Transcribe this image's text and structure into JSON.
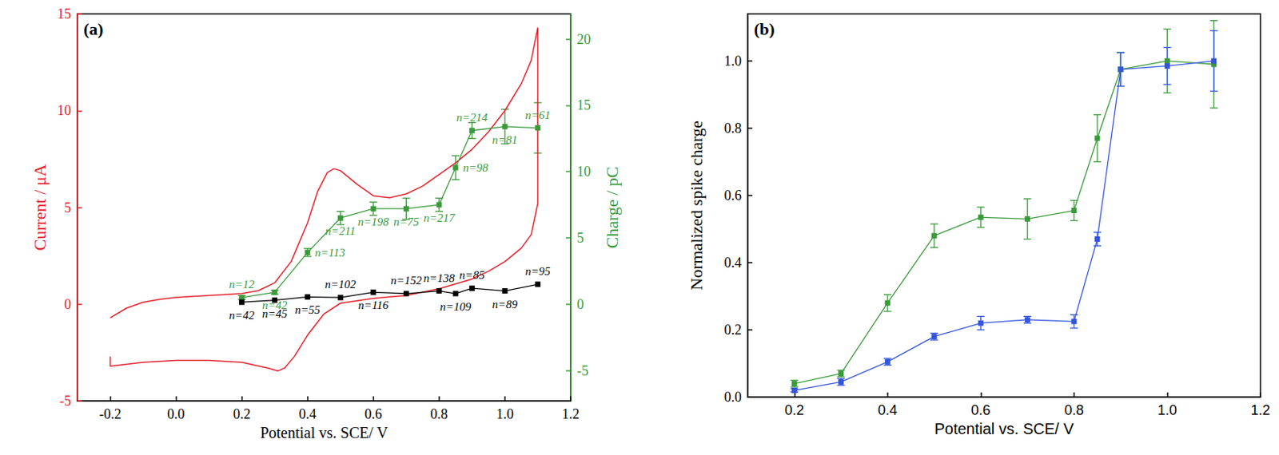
{
  "chart_data": [
    {
      "type": "line",
      "panel_label": "(a)",
      "x_label": "Potential vs. SCE/ V",
      "y_label": "Current / μA",
      "y2_label": "Charge / pC",
      "xlim": [
        -0.3,
        1.2
      ],
      "xticks": [
        -0.2,
        {
          "value": 0,
          "label": "0.0"
        },
        0.2,
        0.4,
        0.6,
        0.8,
        {
          "value": 1,
          "label": "1.0"
        },
        1.2
      ],
      "ylim": [
        -5,
        15
      ],
      "yticks": [
        -5,
        0,
        5,
        10,
        15
      ],
      "y2lim": [
        -7.3,
        21.9
      ],
      "y2ticks": [
        -5,
        0,
        5,
        10,
        15,
        20
      ],
      "grid": false,
      "series": [
        {
          "type": "line",
          "color": "#e8202a",
          "marker": "none",
          "x": [
            -0.2,
            -0.15,
            -0.1,
            -0.05,
            0.0,
            0.1,
            0.2,
            0.25,
            0.3,
            0.35,
            0.4,
            0.43,
            0.46,
            0.48,
            0.5,
            0.55,
            0.6,
            0.65,
            0.7,
            0.75,
            0.8,
            0.85,
            0.9,
            0.95,
            1.0,
            1.05,
            1.08,
            1.1,
            1.1,
            1.08,
            1.05,
            1.0,
            0.95,
            0.9,
            0.8,
            0.7,
            0.6,
            0.5,
            0.45,
            0.4,
            0.36,
            0.33,
            0.31,
            0.28,
            0.2,
            0.1,
            0.0,
            -0.1,
            -0.2,
            -0.2
          ],
          "values": [
            -0.7,
            -0.2,
            0.1,
            0.25,
            0.35,
            0.45,
            0.55,
            0.7,
            1.1,
            2.2,
            4.2,
            5.8,
            6.8,
            7.0,
            6.9,
            6.2,
            5.6,
            5.5,
            5.7,
            6.1,
            6.7,
            7.3,
            8.0,
            8.9,
            10.0,
            11.4,
            12.6,
            14.3,
            5.2,
            3.6,
            2.9,
            2.2,
            1.7,
            1.3,
            0.8,
            0.45,
            0.3,
            0.05,
            -0.5,
            -1.6,
            -2.7,
            -3.3,
            -3.45,
            -3.3,
            -3.0,
            -2.9,
            -2.9,
            -3.0,
            -3.2,
            -2.7
          ]
        },
        {
          "type": "line",
          "color": "#3a9a3a",
          "marker": "square",
          "axis": "y2",
          "x": [
            0.2,
            0.3,
            0.4,
            0.5,
            0.6,
            0.7,
            0.8,
            0.85,
            0.9,
            1.0,
            1.1
          ],
          "values": [
            0.5,
            0.9,
            3.9,
            6.5,
            7.2,
            7.2,
            7.5,
            10.3,
            13.1,
            13.4,
            13.3
          ],
          "errors": [
            0.15,
            0.15,
            0.3,
            0.5,
            0.5,
            0.8,
            0.5,
            0.9,
            0.6,
            1.3,
            1.9
          ],
          "point_labels": [
            "n=12",
            "n=42",
            "n=113",
            "n=211",
            "n=198",
            "n=75",
            "n=217",
            "n=98",
            "n=214",
            "n=81",
            "n=61"
          ]
        },
        {
          "type": "line",
          "color": "#000000",
          "marker": "square",
          "axis": "y2",
          "x": [
            0.2,
            0.3,
            0.4,
            0.5,
            0.6,
            0.7,
            0.8,
            0.85,
            0.9,
            1.0,
            1.1
          ],
          "values": [
            0.15,
            0.3,
            0.55,
            0.5,
            0.9,
            0.8,
            1.0,
            0.8,
            1.2,
            1.0,
            1.5
          ],
          "point_labels": [
            "n=42",
            "n=45",
            "n=55",
            "n=102",
            "n=116",
            "n=152",
            "n=138",
            "n=109",
            "n=85",
            "n=89",
            "n=95"
          ]
        }
      ]
    },
    {
      "type": "line",
      "panel_label": "(b)",
      "x_label": "Potential vs. SCE/ V",
      "y_label": "Normalized spike charge",
      "xlim": [
        0.1,
        1.2
      ],
      "xticks": [
        0.2,
        0.4,
        0.6,
        0.8,
        {
          "value": 1,
          "label": "1.0"
        },
        1.2
      ],
      "ylim": [
        0,
        1.14
      ],
      "yticks": [
        {
          "value": 0,
          "label": "0.0"
        },
        0.2,
        0.4,
        0.6,
        0.8,
        {
          "value": 1,
          "label": "1.0"
        }
      ],
      "grid": false,
      "series": [
        {
          "type": "line",
          "color": "#3a9a3a",
          "marker": "square",
          "x": [
            0.2,
            0.3,
            0.4,
            0.5,
            0.6,
            0.7,
            0.8,
            0.85,
            0.9,
            1.0,
            1.1
          ],
          "values": [
            0.04,
            0.07,
            0.28,
            0.48,
            0.535,
            0.53,
            0.555,
            0.77,
            0.975,
            1.0,
            0.99
          ],
          "errors": [
            0.01,
            0.01,
            0.025,
            0.035,
            0.03,
            0.06,
            0.03,
            0.07,
            0.05,
            0.095,
            0.13
          ]
        },
        {
          "type": "line",
          "color": "#3355dd",
          "marker": "square",
          "x": [
            0.2,
            0.3,
            0.4,
            0.5,
            0.6,
            0.7,
            0.8,
            0.85,
            0.9,
            1.0,
            1.1
          ],
          "values": [
            0.02,
            0.045,
            0.105,
            0.18,
            0.22,
            0.23,
            0.225,
            0.47,
            0.975,
            0.985,
            1.0
          ],
          "errors": [
            0.005,
            0.01,
            0.01,
            0.01,
            0.02,
            0.01,
            0.02,
            0.02,
            0.05,
            0.055,
            0.09
          ]
        }
      ]
    }
  ]
}
